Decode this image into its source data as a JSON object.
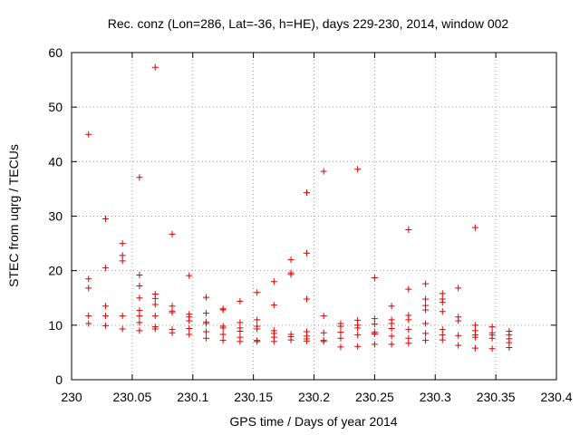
{
  "chart_data": {
    "type": "scatter",
    "title": "Rec. conz (Lon=286, Lat=-36, h=HE), days 229-230, 2014, window 002",
    "xlabel": "GPS time / Days of year 2014",
    "ylabel": "STEC from uqrg / TECUs",
    "xlim": [
      230,
      230.4
    ],
    "ylim": [
      0,
      60
    ],
    "xticks": [
      230,
      230.05,
      230.1,
      230.15,
      230.2,
      230.25,
      230.3,
      230.35,
      230.4
    ],
    "xtick_labels": [
      "230",
      "230.05",
      "230.1",
      "230.15",
      "230.2",
      "230.25",
      "230.3",
      "230.35",
      "230.4"
    ],
    "yticks": [
      0,
      10,
      20,
      30,
      40,
      50,
      60
    ],
    "ytick_labels": [
      "0",
      "10",
      "20",
      "30",
      "40",
      "50",
      "60"
    ],
    "grid": true,
    "marker": "+",
    "color": "#e00000",
    "series": [
      {
        "name": "STEC",
        "points": [
          [
            230.014,
            45.0
          ],
          [
            230.014,
            18.5
          ],
          [
            230.014,
            16.8
          ],
          [
            230.014,
            11.7
          ],
          [
            230.014,
            10.3
          ],
          [
            230.028,
            29.5
          ],
          [
            230.028,
            20.5
          ],
          [
            230.028,
            13.5
          ],
          [
            230.028,
            11.7
          ],
          [
            230.028,
            9.9
          ],
          [
            230.042,
            25.0
          ],
          [
            230.042,
            22.8
          ],
          [
            230.042,
            21.8
          ],
          [
            230.042,
            11.7
          ],
          [
            230.042,
            9.3
          ],
          [
            230.056,
            37.1
          ],
          [
            230.056,
            19.2
          ],
          [
            230.056,
            17.2
          ],
          [
            230.056,
            15.0
          ],
          [
            230.056,
            12.7
          ],
          [
            230.056,
            11.7
          ],
          [
            230.056,
            10.5
          ],
          [
            230.056,
            9.0
          ],
          [
            230.069,
            57.3
          ],
          [
            230.069,
            15.7
          ],
          [
            230.069,
            14.9
          ],
          [
            230.069,
            13.8
          ],
          [
            230.069,
            11.7
          ],
          [
            230.069,
            9.7
          ],
          [
            230.069,
            9.3
          ],
          [
            230.083,
            26.7
          ],
          [
            230.083,
            13.5
          ],
          [
            230.083,
            12.6
          ],
          [
            230.083,
            12.3
          ],
          [
            230.083,
            9.2
          ],
          [
            230.083,
            8.6
          ],
          [
            230.097,
            19.1
          ],
          [
            230.097,
            12.0
          ],
          [
            230.097,
            11.5
          ],
          [
            230.097,
            10.8
          ],
          [
            230.097,
            9.4
          ],
          [
            230.097,
            8.3
          ],
          [
            230.111,
            15.1
          ],
          [
            230.111,
            12.2
          ],
          [
            230.111,
            10.6
          ],
          [
            230.111,
            10.3
          ],
          [
            230.111,
            8.8
          ],
          [
            230.111,
            7.6
          ],
          [
            230.125,
            13.0
          ],
          [
            230.125,
            12.8
          ],
          [
            230.125,
            9.8
          ],
          [
            230.125,
            9.5
          ],
          [
            230.125,
            8.3
          ],
          [
            230.125,
            7.2
          ],
          [
            230.139,
            14.4
          ],
          [
            230.139,
            10.5
          ],
          [
            230.139,
            9.5
          ],
          [
            230.139,
            8.9
          ],
          [
            230.139,
            7.8
          ],
          [
            230.139,
            7.0
          ],
          [
            230.153,
            16.0
          ],
          [
            230.153,
            11.0
          ],
          [
            230.153,
            9.8
          ],
          [
            230.153,
            9.3
          ],
          [
            230.153,
            7.2
          ],
          [
            230.153,
            7.0
          ],
          [
            230.167,
            18.0
          ],
          [
            230.167,
            13.7
          ],
          [
            230.167,
            9.0
          ],
          [
            230.167,
            8.5
          ],
          [
            230.167,
            7.8
          ],
          [
            230.167,
            7.0
          ],
          [
            230.181,
            22.0
          ],
          [
            230.181,
            19.6
          ],
          [
            230.181,
            19.3
          ],
          [
            230.181,
            8.3
          ],
          [
            230.181,
            7.9
          ],
          [
            230.181,
            7.3
          ],
          [
            230.194,
            34.3
          ],
          [
            230.194,
            23.2
          ],
          [
            230.194,
            14.8
          ],
          [
            230.194,
            8.8
          ],
          [
            230.194,
            8.0
          ],
          [
            230.194,
            7.5
          ],
          [
            230.194,
            7.1
          ],
          [
            230.208,
            38.2
          ],
          [
            230.208,
            11.7
          ],
          [
            230.208,
            8.6
          ],
          [
            230.208,
            7.2
          ],
          [
            230.208,
            7.0
          ],
          [
            230.222,
            10.3
          ],
          [
            230.222,
            9.8
          ],
          [
            230.222,
            8.7
          ],
          [
            230.222,
            7.6
          ],
          [
            230.222,
            6.0
          ],
          [
            230.236,
            38.6
          ],
          [
            230.236,
            10.9
          ],
          [
            230.236,
            10.0
          ],
          [
            230.236,
            9.5
          ],
          [
            230.236,
            8.2
          ],
          [
            230.236,
            6.1
          ],
          [
            230.25,
            18.7
          ],
          [
            230.25,
            11.2
          ],
          [
            230.25,
            10.2
          ],
          [
            230.25,
            8.7
          ],
          [
            230.25,
            8.4
          ],
          [
            230.25,
            6.5
          ],
          [
            230.264,
            13.5
          ],
          [
            230.264,
            11.0
          ],
          [
            230.264,
            10.3
          ],
          [
            230.264,
            9.4
          ],
          [
            230.264,
            8.0
          ],
          [
            230.264,
            6.5
          ],
          [
            230.278,
            27.5
          ],
          [
            230.278,
            16.6
          ],
          [
            230.278,
            11.8
          ],
          [
            230.278,
            11.0
          ],
          [
            230.278,
            9.2
          ],
          [
            230.278,
            7.6
          ],
          [
            230.278,
            6.7
          ],
          [
            230.292,
            17.6
          ],
          [
            230.292,
            14.8
          ],
          [
            230.292,
            13.6
          ],
          [
            230.292,
            12.8
          ],
          [
            230.292,
            10.3
          ],
          [
            230.292,
            8.5
          ],
          [
            230.292,
            7.2
          ],
          [
            230.306,
            15.8
          ],
          [
            230.306,
            14.8
          ],
          [
            230.306,
            14.2
          ],
          [
            230.306,
            12.5
          ],
          [
            230.306,
            9.2
          ],
          [
            230.306,
            8.2
          ],
          [
            230.306,
            7.3
          ],
          [
            230.319,
            16.8
          ],
          [
            230.319,
            11.5
          ],
          [
            230.319,
            10.8
          ],
          [
            230.319,
            8.1
          ],
          [
            230.319,
            6.3
          ],
          [
            230.333,
            27.9
          ],
          [
            230.333,
            10.0
          ],
          [
            230.333,
            9.0
          ],
          [
            230.333,
            8.2
          ],
          [
            230.333,
            7.8
          ],
          [
            230.333,
            5.8
          ],
          [
            230.347,
            9.7
          ],
          [
            230.347,
            8.6
          ],
          [
            230.347,
            8.2
          ],
          [
            230.347,
            7.6
          ],
          [
            230.347,
            5.7
          ],
          [
            230.361,
            8.9
          ],
          [
            230.361,
            8.2
          ],
          [
            230.361,
            7.5
          ],
          [
            230.361,
            6.8
          ],
          [
            230.361,
            5.9
          ]
        ]
      }
    ]
  }
}
